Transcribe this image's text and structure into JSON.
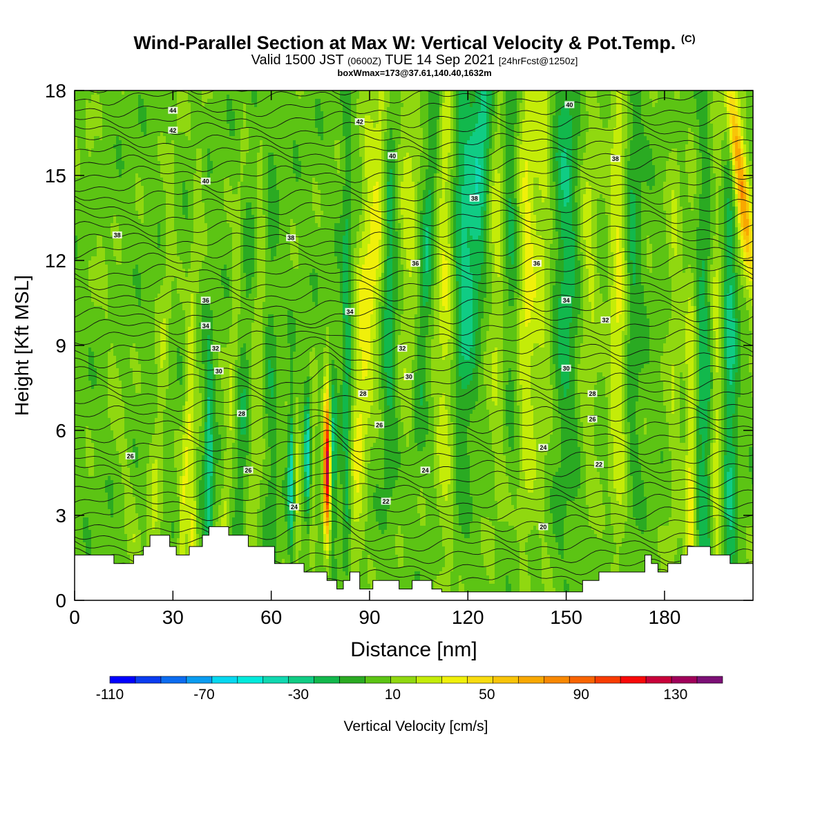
{
  "title": {
    "main": "Wind-Parallel Section at Max W: Vertical Velocity & Pot.Temp.",
    "main_tag": "(C)",
    "valid_prefix": "Valid 1500 JST",
    "valid_utc": "(0600Z)",
    "valid_date": "TUE 14 Sep 2021",
    "forecast": "[24hrFcst@1250z]",
    "box": "boxWmax=173@37.61,140.40,1632m"
  },
  "chart_data": {
    "type": "heatmap",
    "xlabel": "Distance [nm]",
    "ylabel": "Height [Kft MSL]",
    "xlim": [
      0,
      207
    ],
    "ylim": [
      0,
      18
    ],
    "xticks": [
      0,
      30,
      60,
      90,
      120,
      150,
      180
    ],
    "yticks": [
      0,
      3,
      6,
      9,
      12,
      15,
      18
    ],
    "colorbar": {
      "label": "Vertical Velocity [cm/s]",
      "tick_labels": [
        -110,
        -70,
        -30,
        10,
        50,
        90,
        130
      ],
      "range": [
        -110,
        150
      ],
      "colors": [
        "#0000ff",
        "#0a3cf0",
        "#0c6cf0",
        "#0a9cf0",
        "#06d8f0",
        "#00eadc",
        "#10d8b0",
        "#10cc84",
        "#12b84c",
        "#2aaa22",
        "#5cc414",
        "#90d810",
        "#c4ec08",
        "#f0f00a",
        "#f8dc10",
        "#f8c408",
        "#f8a800",
        "#f88800",
        "#f86400",
        "#f83c00",
        "#f80808",
        "#c8003a",
        "#a0005a",
        "#7c1076"
      ]
    },
    "terrain_profile": [
      [
        0,
        1.6
      ],
      [
        12,
        1.6
      ],
      [
        12,
        1.3
      ],
      [
        18,
        1.3
      ],
      [
        18,
        1.6
      ],
      [
        21,
        1.6
      ],
      [
        21,
        1.9
      ],
      [
        23,
        1.9
      ],
      [
        23,
        2.3
      ],
      [
        29,
        2.3
      ],
      [
        29,
        1.9
      ],
      [
        31,
        1.9
      ],
      [
        31,
        1.6
      ],
      [
        35,
        1.6
      ],
      [
        35,
        1.9
      ],
      [
        39,
        1.9
      ],
      [
        39,
        2.3
      ],
      [
        41,
        2.3
      ],
      [
        41,
        2.6
      ],
      [
        47,
        2.6
      ],
      [
        47,
        2.3
      ],
      [
        53,
        2.3
      ],
      [
        53,
        1.9
      ],
      [
        61,
        1.9
      ],
      [
        61,
        1.3
      ],
      [
        70,
        1.3
      ],
      [
        70,
        1.0
      ],
      [
        77,
        1.0
      ],
      [
        77,
        0.7
      ],
      [
        80,
        0.7
      ],
      [
        80,
        0.4
      ],
      [
        82,
        0.4
      ],
      [
        82,
        0.7
      ],
      [
        84,
        0.7
      ],
      [
        84,
        1.0
      ],
      [
        87,
        1.0
      ],
      [
        87,
        0.4
      ],
      [
        91,
        0.4
      ],
      [
        91,
        0.7
      ],
      [
        99,
        0.7
      ],
      [
        99,
        0.4
      ],
      [
        103,
        0.4
      ],
      [
        103,
        0.7
      ],
      [
        109,
        0.7
      ],
      [
        109,
        0.4
      ],
      [
        112,
        0.4
      ],
      [
        112,
        0.3
      ],
      [
        155,
        0.3
      ],
      [
        155,
        0.7
      ],
      [
        160,
        0.7
      ],
      [
        160,
        1.0
      ],
      [
        174,
        1.0
      ],
      [
        174,
        1.6
      ],
      [
        176,
        1.6
      ],
      [
        176,
        1.3
      ],
      [
        178,
        1.3
      ],
      [
        178,
        1.0
      ],
      [
        181,
        1.0
      ],
      [
        181,
        1.3
      ],
      [
        185,
        1.3
      ],
      [
        185,
        1.6
      ],
      [
        187,
        1.6
      ],
      [
        187,
        1.9
      ],
      [
        194,
        1.9
      ],
      [
        194,
        1.6
      ],
      [
        200,
        1.6
      ],
      [
        200,
        1.3
      ],
      [
        207,
        1.3
      ]
    ],
    "theta_contours": [
      {
        "label": "20",
        "x": 143,
        "y": 2.6
      },
      {
        "label": "22",
        "x": 95,
        "y": 3.5
      },
      {
        "label": "22",
        "x": 160,
        "y": 4.8
      },
      {
        "label": "24",
        "x": 67,
        "y": 3.3
      },
      {
        "label": "24",
        "x": 107,
        "y": 4.6
      },
      {
        "label": "24",
        "x": 143,
        "y": 5.4
      },
      {
        "label": "26",
        "x": 17,
        "y": 5.1
      },
      {
        "label": "26",
        "x": 53,
        "y": 4.6
      },
      {
        "label": "26",
        "x": 93,
        "y": 6.2
      },
      {
        "label": "26",
        "x": 158,
        "y": 6.4
      },
      {
        "label": "28",
        "x": 51,
        "y": 6.6
      },
      {
        "label": "28",
        "x": 88,
        "y": 7.3
      },
      {
        "label": "28",
        "x": 158,
        "y": 7.3
      },
      {
        "label": "30",
        "x": 44,
        "y": 8.1
      },
      {
        "label": "30",
        "x": 102,
        "y": 7.9
      },
      {
        "label": "30",
        "x": 150,
        "y": 8.2
      },
      {
        "label": "32",
        "x": 43,
        "y": 8.9
      },
      {
        "label": "32",
        "x": 100,
        "y": 8.9
      },
      {
        "label": "32",
        "x": 162,
        "y": 9.9
      },
      {
        "label": "34",
        "x": 40,
        "y": 9.7
      },
      {
        "label": "34",
        "x": 84,
        "y": 10.2
      },
      {
        "label": "34",
        "x": 150,
        "y": 10.6
      },
      {
        "label": "36",
        "x": 40,
        "y": 10.6
      },
      {
        "label": "36",
        "x": 104,
        "y": 11.9
      },
      {
        "label": "36",
        "x": 141,
        "y": 11.9
      },
      {
        "label": "38",
        "x": 13,
        "y": 12.9
      },
      {
        "label": "38",
        "x": 66,
        "y": 12.8
      },
      {
        "label": "38",
        "x": 122,
        "y": 14.2
      },
      {
        "label": "38",
        "x": 165,
        "y": 15.6
      },
      {
        "label": "40",
        "x": 40,
        "y": 14.8
      },
      {
        "label": "40",
        "x": 97,
        "y": 15.7
      },
      {
        "label": "40",
        "x": 151,
        "y": 17.5
      },
      {
        "label": "42",
        "x": 30,
        "y": 16.6
      },
      {
        "label": "42",
        "x": 87,
        "y": 16.9
      },
      {
        "label": "44",
        "x": 30,
        "y": 17.3
      }
    ]
  }
}
